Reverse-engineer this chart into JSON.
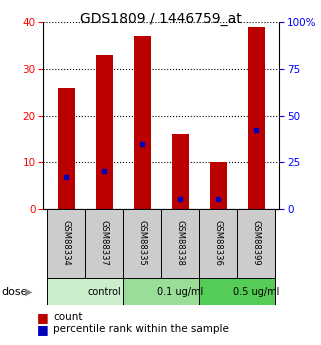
{
  "title": "GDS1809 / 1446759_at",
  "samples": [
    "GSM88334",
    "GSM88337",
    "GSM88335",
    "GSM88338",
    "GSM88336",
    "GSM88399"
  ],
  "counts": [
    26,
    33,
    37,
    16,
    10,
    39
  ],
  "percentile_ranks": [
    17,
    20,
    35,
    5,
    5,
    42
  ],
  "groups": [
    {
      "label": "control",
      "start": 0,
      "end": 2,
      "color": "#cceecc"
    },
    {
      "label": "0.1 ug/ml",
      "start": 2,
      "end": 4,
      "color": "#99dd99"
    },
    {
      "label": "0.5 ug/ml",
      "start": 4,
      "end": 6,
      "color": "#55cc55"
    }
  ],
  "bar_color": "#bb0000",
  "blue_color": "#0000bb",
  "bar_width": 0.45,
  "ylim_left": [
    0,
    40
  ],
  "ylim_right": [
    0,
    100
  ],
  "yticks_left": [
    0,
    10,
    20,
    30,
    40
  ],
  "yticks_right": [
    0,
    25,
    50,
    75,
    100
  ],
  "ytick_labels_right": [
    "0",
    "25",
    "50",
    "75",
    "100%"
  ],
  "dose_label": "dose",
  "legend_count_label": "count",
  "legend_pct_label": "percentile rank within the sample",
  "sample_box_color": "#cccccc",
  "title_fontsize": 10,
  "tick_fontsize": 7.5,
  "label_fontsize": 8.5
}
